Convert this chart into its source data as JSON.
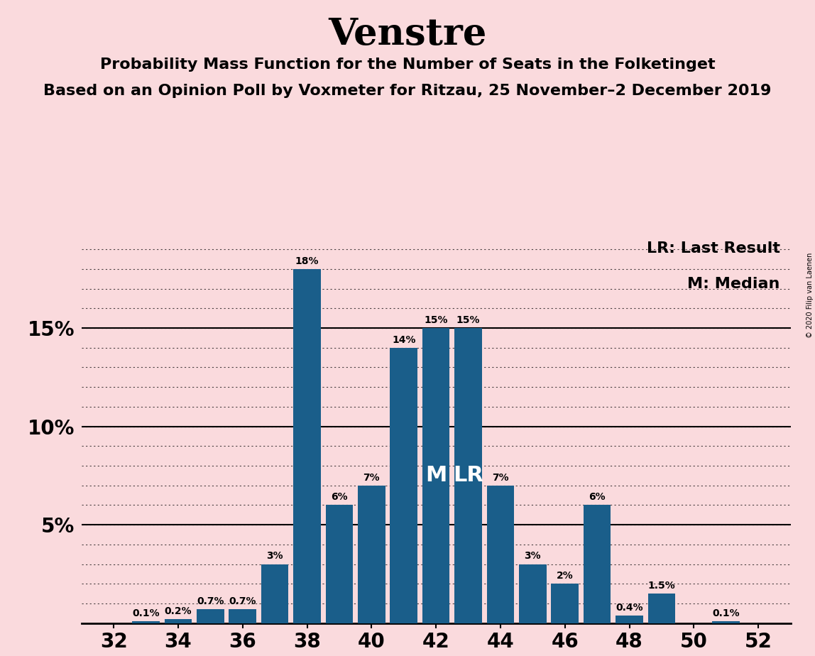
{
  "title": "Venstre",
  "subtitle1": "Probability Mass Function for the Number of Seats in the Folketinget",
  "subtitle2": "Based on an Opinion Poll by Voxmeter for Ritzau, 25 November–2 December 2019",
  "copyright": "© 2020 Filip van Laenen",
  "seats": [
    32,
    33,
    34,
    35,
    36,
    37,
    38,
    39,
    40,
    41,
    42,
    43,
    44,
    45,
    46,
    47,
    48,
    49,
    50,
    51,
    52
  ],
  "probabilities": [
    0.0,
    0.1,
    0.2,
    0.7,
    0.7,
    3.0,
    18.0,
    6.0,
    7.0,
    14.0,
    15.0,
    15.0,
    7.0,
    3.0,
    2.0,
    6.0,
    0.4,
    1.5,
    0.0,
    0.1,
    0.0
  ],
  "bar_color": "#1a5e8a",
  "background_color": "#fadadd",
  "median_seat": 42,
  "last_result_seat": 43,
  "legend_lr": "LR: Last Result",
  "legend_m": "M: Median",
  "ylim": [
    0,
    20
  ],
  "xlim": [
    31.0,
    53.0
  ],
  "title_fontsize": 38,
  "subtitle_fontsize": 16,
  "tick_fontsize": 20,
  "label_fontsize": 10,
  "legend_fontsize": 16,
  "copyright_fontsize": 7
}
